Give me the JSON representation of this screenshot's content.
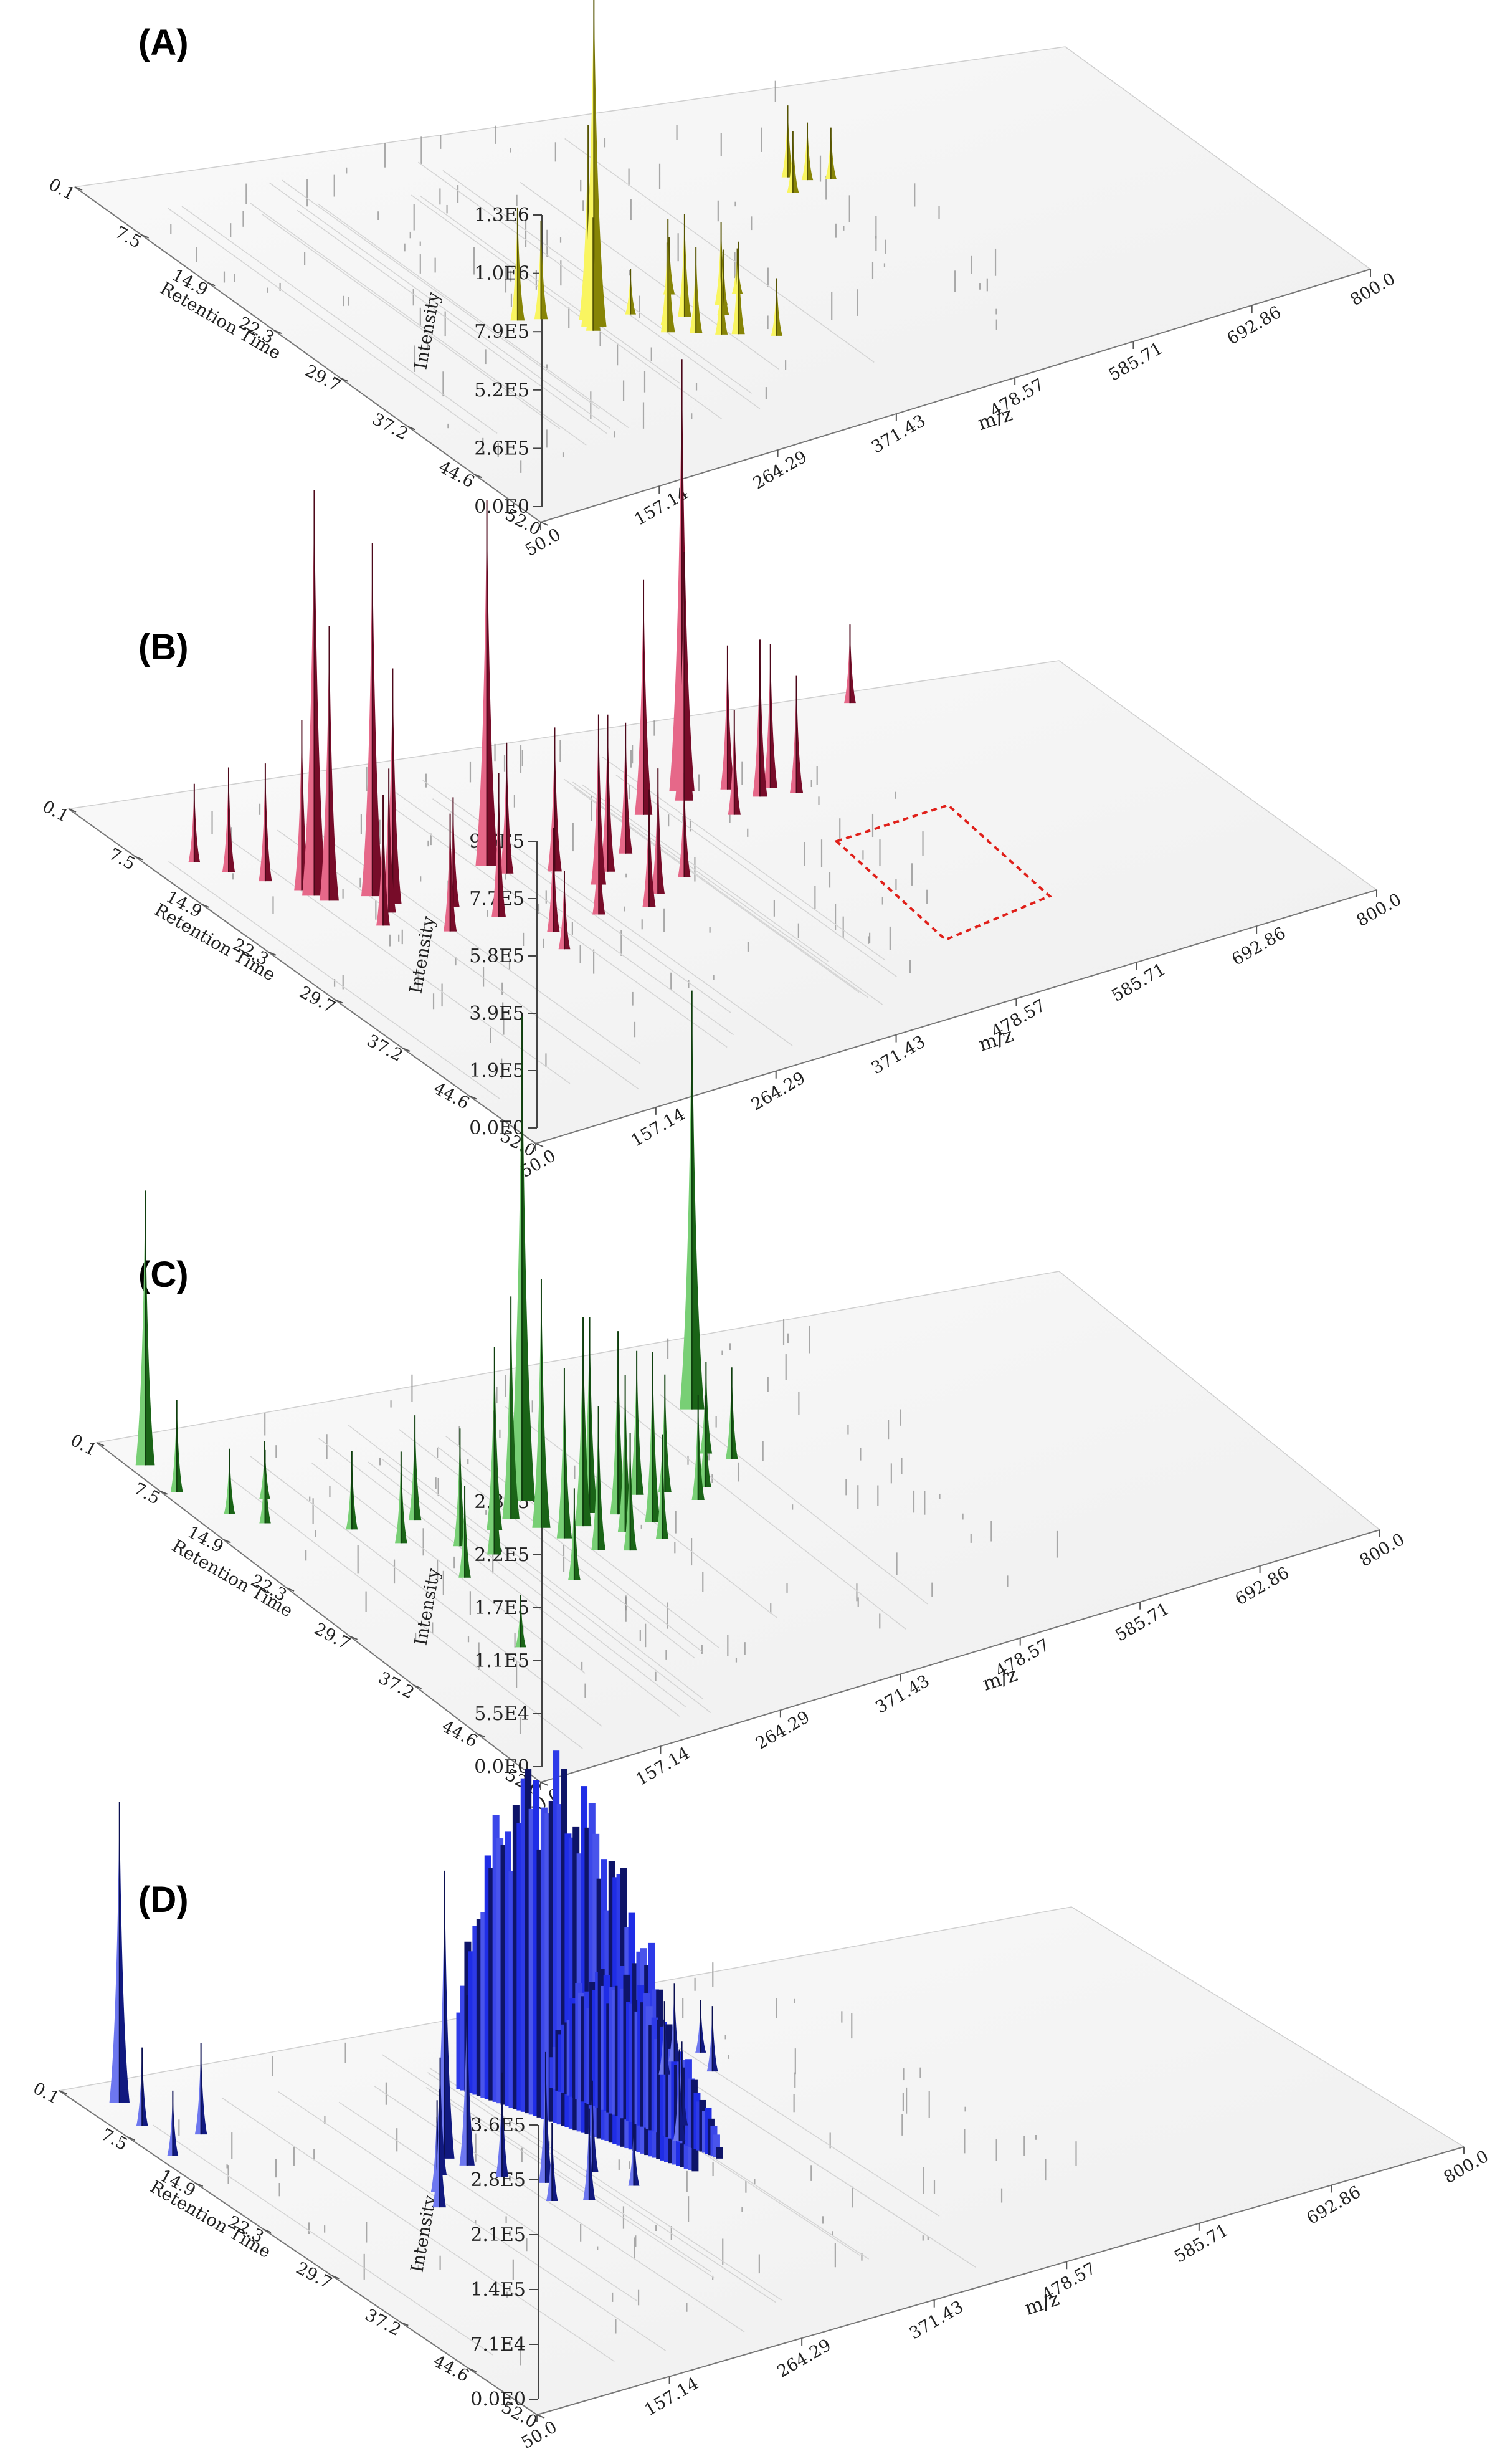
{
  "chart_data": [
    {
      "type": "3d-chromatogram",
      "panel": "(A)",
      "series_color": "#f5f00a",
      "ylabel": "Intensity",
      "rt_label": "Retention Time",
      "x_label": "m/z",
      "rt_ticks": [
        "0.1",
        "7.5",
        "14.9",
        "22.3",
        "29.7",
        "37.2",
        "44.6",
        "52.0"
      ],
      "x_ticks": [
        "50.0",
        "157.14",
        "264.29",
        "371.43",
        "478.57",
        "585.71",
        "692.86",
        "800.0"
      ],
      "intensity_ticks": [
        "0.0E0",
        "2.6E5",
        "5.2E5",
        "7.9E5",
        "1.0E6",
        "1.3E6"
      ],
      "intensity_max": 1300000,
      "highlight_box": false,
      "peaks": [
        {
          "mz": 256,
          "rt": 30.5,
          "h": 1.65
        },
        {
          "mz": 258,
          "rt": 29.5,
          "h": 0.95
        },
        {
          "mz": 252,
          "rt": 31.0,
          "h": 0.55
        },
        {
          "mz": 213,
          "rt": 27.5,
          "h": 0.55
        },
        {
          "mz": 229,
          "rt": 28.0,
          "h": 0.48
        },
        {
          "mz": 298,
          "rt": 33.5,
          "h": 0.55
        },
        {
          "mz": 304,
          "rt": 32.5,
          "h": 0.4
        },
        {
          "mz": 315,
          "rt": 34.5,
          "h": 0.42
        },
        {
          "mz": 322,
          "rt": 32.0,
          "h": 0.5
        },
        {
          "mz": 330,
          "rt": 35.5,
          "h": 0.38
        },
        {
          "mz": 341,
          "rt": 36.0,
          "h": 0.45
        },
        {
          "mz": 356,
          "rt": 31.5,
          "h": 0.4
        },
        {
          "mz": 348,
          "rt": 33.0,
          "h": 0.32
        },
        {
          "mz": 281,
          "rt": 27.0,
          "h": 0.35
        },
        {
          "mz": 364,
          "rt": 37.5,
          "h": 0.28
        },
        {
          "mz": 510,
          "rt": 15.0,
          "h": 0.35
        },
        {
          "mz": 520,
          "rt": 16.0,
          "h": 0.28
        },
        {
          "mz": 500,
          "rt": 17.5,
          "h": 0.3
        },
        {
          "mz": 536,
          "rt": 16.5,
          "h": 0.25
        },
        {
          "mz": 332,
          "rt": 28.5,
          "h": 0.28
        },
        {
          "mz": 376,
          "rt": 30.5,
          "h": 0.22
        },
        {
          "mz": 290,
          "rt": 30.0,
          "h": 0.22
        }
      ]
    },
    {
      "type": "3d-chromatogram",
      "panel": "(B)",
      "series_color": "#d8164a",
      "ylabel": "Intensity",
      "rt_label": "Retention Time",
      "x_label": "m/z",
      "rt_ticks": [
        "0.1",
        "7.5",
        "14.9",
        "22.3",
        "29.7",
        "37.2",
        "44.6",
        "52.0"
      ],
      "x_ticks": [
        "50.0",
        "157.14",
        "264.29",
        "371.43",
        "478.57",
        "585.71",
        "692.86",
        "800.0"
      ],
      "intensity_ticks": [
        "0.0E0",
        "1.9E5",
        "3.9E5",
        "5.8E5",
        "7.7E5",
        "9.6E5"
      ],
      "intensity_max": 960000,
      "highlight_box": true,
      "peaks": [
        {
          "mz": 128,
          "rt": 16.5,
          "h": 1.55
        },
        {
          "mz": 133,
          "rt": 17.5,
          "h": 1.05
        },
        {
          "mz": 125,
          "rt": 15.5,
          "h": 0.65
        },
        {
          "mz": 164,
          "rt": 18.0,
          "h": 1.35
        },
        {
          "mz": 170,
          "rt": 19.5,
          "h": 0.9
        },
        {
          "mz": 160,
          "rt": 20.5,
          "h": 0.55
        },
        {
          "mz": 262,
          "rt": 17.0,
          "h": 1.4
        },
        {
          "mz": 268,
          "rt": 18.5,
          "h": 0.5
        },
        {
          "mz": 450,
          "rt": 11.5,
          "h": 1.65
        },
        {
          "mz": 443,
          "rt": 13.0,
          "h": 0.95
        },
        {
          "mz": 405,
          "rt": 14.0,
          "h": 0.9
        },
        {
          "mz": 95,
          "rt": 11.5,
          "h": 0.4
        },
        {
          "mz": 82,
          "rt": 9.5,
          "h": 0.3
        },
        {
          "mz": 110,
          "rt": 13.5,
          "h": 0.45
        },
        {
          "mz": 145,
          "rt": 22.0,
          "h": 0.5
        },
        {
          "mz": 182,
          "rt": 24.5,
          "h": 0.45
        },
        {
          "mz": 205,
          "rt": 21.5,
          "h": 0.42
        },
        {
          "mz": 225,
          "rt": 24.0,
          "h": 0.55
        },
        {
          "mz": 246,
          "rt": 27.5,
          "h": 0.4
        },
        {
          "mz": 300,
          "rt": 19.5,
          "h": 0.55
        },
        {
          "mz": 316,
          "rt": 22.5,
          "h": 0.65
        },
        {
          "mz": 333,
          "rt": 21.0,
          "h": 0.6
        },
        {
          "mz": 345,
          "rt": 25.5,
          "h": 0.48
        },
        {
          "mz": 328,
          "rt": 27.0,
          "h": 0.45
        },
        {
          "mz": 360,
          "rt": 19.0,
          "h": 0.5
        },
        {
          "mz": 376,
          "rt": 24.0,
          "h": 0.4
        },
        {
          "mz": 290,
          "rt": 26.5,
          "h": 0.4
        },
        {
          "mz": 480,
          "rt": 12.5,
          "h": 0.55
        },
        {
          "mz": 494,
          "rt": 14.5,
          "h": 0.6
        },
        {
          "mz": 508,
          "rt": 13.5,
          "h": 0.55
        },
        {
          "mz": 520,
          "rt": 15.0,
          "h": 0.45
        },
        {
          "mz": 462,
          "rt": 16.5,
          "h": 0.4
        },
        {
          "mz": 632,
          "rt": 2.0,
          "h": 0.3
        },
        {
          "mz": 238,
          "rt": 30.0,
          "h": 0.3
        }
      ]
    },
    {
      "type": "3d-chromatogram",
      "panel": "(C)",
      "series_color": "#2fb52a",
      "ylabel": "Intensity",
      "rt_label": "Retention Time",
      "x_label": "m/z",
      "rt_ticks": [
        "0.1",
        "7.5",
        "14.9",
        "22.3",
        "29.7",
        "37.2",
        "44.6",
        "52.0"
      ],
      "x_ticks": [
        "50.0",
        "157.14",
        "264.29",
        "371.43",
        "478.57",
        "585.71",
        "692.86",
        "800.0"
      ],
      "intensity_ticks": [
        "0.0E0",
        "5.5E4",
        "1.1E5",
        "1.7E5",
        "2.2E5",
        "2.8E5"
      ],
      "intensity_max": 280000,
      "highlight_box": false,
      "peaks": [
        {
          "mz": 62,
          "rt": 4.0,
          "h": 1.05
        },
        {
          "mz": 60,
          "rt": 8.0,
          "h": 0.35
        },
        {
          "mz": 272,
          "rt": 18.0,
          "h": 1.85
        },
        {
          "mz": 455,
          "rt": 10.5,
          "h": 1.6
        },
        {
          "mz": 250,
          "rt": 20.0,
          "h": 0.85
        },
        {
          "mz": 262,
          "rt": 22.0,
          "h": 0.95
        },
        {
          "mz": 230,
          "rt": 21.0,
          "h": 0.7
        },
        {
          "mz": 290,
          "rt": 23.0,
          "h": 0.8
        },
        {
          "mz": 305,
          "rt": 21.5,
          "h": 0.75
        },
        {
          "mz": 322,
          "rt": 22.5,
          "h": 0.7
        },
        {
          "mz": 338,
          "rt": 24.5,
          "h": 0.65
        },
        {
          "mz": 350,
          "rt": 20.5,
          "h": 0.55
        },
        {
          "mz": 210,
          "rt": 24.0,
          "h": 0.55
        },
        {
          "mz": 195,
          "rt": 22.0,
          "h": 0.45
        },
        {
          "mz": 280,
          "rt": 26.5,
          "h": 0.55
        },
        {
          "mz": 300,
          "rt": 27.5,
          "h": 0.45
        },
        {
          "mz": 330,
          "rt": 27.0,
          "h": 0.4
        },
        {
          "mz": 370,
          "rt": 21.0,
          "h": 0.45
        },
        {
          "mz": 385,
          "rt": 23.0,
          "h": 0.4
        },
        {
          "mz": 400,
          "rt": 21.5,
          "h": 0.35
        },
        {
          "mz": 428,
          "rt": 17.0,
          "h": 0.35
        },
        {
          "mz": 440,
          "rt": 18.5,
          "h": 0.35
        },
        {
          "mz": 75,
          "rt": 12.0,
          "h": 0.25
        },
        {
          "mz": 90,
          "rt": 14.0,
          "h": 0.28
        },
        {
          "mz": 110,
          "rt": 11.0,
          "h": 0.22
        },
        {
          "mz": 140,
          "rt": 17.0,
          "h": 0.3
        },
        {
          "mz": 160,
          "rt": 20.0,
          "h": 0.35
        },
        {
          "mz": 172,
          "rt": 26.0,
          "h": 0.35
        },
        {
          "mz": 240,
          "rt": 29.5,
          "h": 0.35
        },
        {
          "mz": 150,
          "rt": 36.0,
          "h": 0.2
        },
        {
          "mz": 188,
          "rt": 17.5,
          "h": 0.4
        },
        {
          "mz": 312,
          "rt": 25.0,
          "h": 0.6
        },
        {
          "mz": 268,
          "rt": 24.0,
          "h": 0.65
        }
      ]
    },
    {
      "type": "3d-chromatogram",
      "panel": "(D)",
      "series_color": "#1f2de6",
      "ylabel": "Intensity",
      "rt_label": "Retention Time",
      "x_label": "m/z",
      "rt_ticks": [
        "0.1",
        "7.5",
        "14.9",
        "22.3",
        "29.7",
        "37.2",
        "44.6",
        "52.0"
      ],
      "x_ticks": [
        "50.0",
        "157.14",
        "264.29",
        "371.43",
        "478.57",
        "585.71",
        "692.86",
        "800.0"
      ],
      "intensity_ticks": [
        "0.0E0",
        "7.1E4",
        "1.4E5",
        "2.1E5",
        "2.8E5",
        "3.6E5"
      ],
      "intensity_max": 360000,
      "highlight_box": false,
      "peaks": [
        {
          "mz": 75,
          "rt": 3.0,
          "h": 1.15
        },
        {
          "mz": 68,
          "rt": 6.5,
          "h": 0.3
        },
        {
          "mz": 95,
          "rt": 9.0,
          "h": 0.35
        },
        {
          "mz": 60,
          "rt": 11.0,
          "h": 0.25
        },
        {
          "mz": 215,
          "rt": 18.5,
          "h": 1.1
        },
        {
          "mz": 222,
          "rt": 20.0,
          "h": 0.65
        },
        {
          "mz": 198,
          "rt": 20.5,
          "h": 0.45
        },
        {
          "mz": 182,
          "rt": 22.5,
          "h": 0.35
        },
        {
          "mz": 170,
          "rt": 24.5,
          "h": 0.45
        },
        {
          "mz": 232,
          "rt": 22.5,
          "h": 0.4
        },
        {
          "mz": 252,
          "rt": 24.5,
          "h": 0.5
        },
        {
          "mz": 240,
          "rt": 27.0,
          "h": 0.3
        },
        {
          "mz": 262,
          "rt": 28.0,
          "h": 0.35
        },
        {
          "mz": 288,
          "rt": 24.5,
          "h": 0.35
        },
        {
          "mz": 300,
          "rt": 27.5,
          "h": 0.25
        },
        {
          "mz": 415,
          "rt": 13.5,
          "h": 0.28
        },
        {
          "mz": 432,
          "rt": 12.0,
          "h": 0.3
        },
        {
          "mz": 445,
          "rt": 14.5,
          "h": 0.25
        },
        {
          "mz": 455,
          "rt": 11.5,
          "h": 0.2
        },
        {
          "mz": 365,
          "rt": 23.0,
          "h": 0.35
        },
        {
          "mz": 380,
          "rt": 21.0,
          "h": 0.32
        }
      ],
      "ridges": [
        {
          "mz_start": 283,
          "mz_end": 358,
          "rt_start": 9.5,
          "rt_end": 30.5,
          "h": 1.85
        },
        {
          "mz_start": 338,
          "mz_end": 378,
          "rt_start": 12.0,
          "rt_end": 29.0,
          "h": 0.75
        }
      ]
    }
  ]
}
